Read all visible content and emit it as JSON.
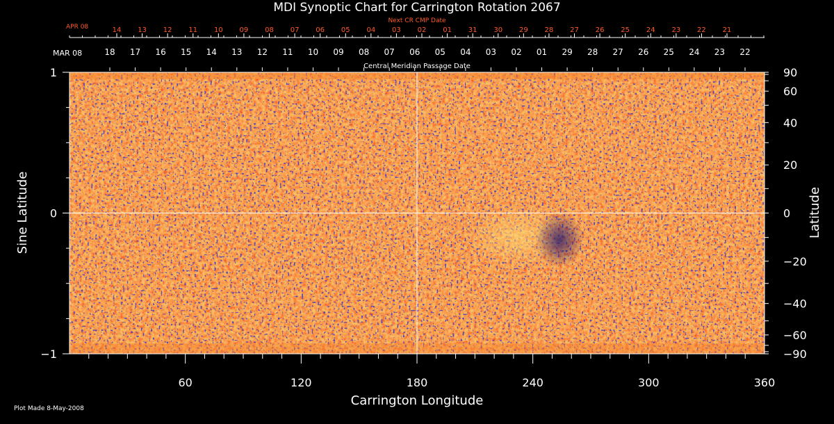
{
  "chart_data": {
    "type": "heatmap",
    "title": "MDI Synoptic Chart for Carrington Rotation 2067",
    "xlabel": "Carrington Longitude",
    "ylabel_left": "Sine Latitude",
    "ylabel_right": "Latitude",
    "xlim": [
      0,
      360
    ],
    "ylim": [
      -1,
      1
    ],
    "x_ticks": [
      60,
      120,
      180,
      240,
      300,
      360
    ],
    "y_ticks_left": [
      {
        "value": 1,
        "label": "1"
      },
      {
        "value": 0,
        "label": "0"
      },
      {
        "value": -1,
        "label": "−1"
      }
    ],
    "y_ticks_right": [
      90,
      60,
      40,
      20,
      0,
      -20,
      -40,
      -60,
      -90
    ],
    "y_ticks_right_labels": [
      "90",
      "60",
      "40",
      "20",
      "0",
      "−20",
      "−40",
      "−60",
      "−90"
    ],
    "guide_lines": {
      "longitude": 180,
      "sine_latitude": 0
    },
    "colors": {
      "background": "#000000",
      "text": "#ffffff",
      "next_axis": "#ff5a2a",
      "map_base": "#f25a12",
      "map_bright": "#ffd24a",
      "map_dark": "#1a1070"
    },
    "cmp_axis": {
      "label": "Central Meridian Passage Date",
      "month": "MAR 08",
      "days": [
        "18",
        "17",
        "16",
        "15",
        "14",
        "13",
        "12",
        "11",
        "10",
        "09",
        "08",
        "07",
        "06",
        "05",
        "04",
        "03",
        "02",
        "01",
        "29",
        "28",
        "27",
        "26",
        "25",
        "24",
        "23",
        "22"
      ]
    },
    "next_cmp_axis": {
      "label": "Next CR CMP Date",
      "month": "APR 08",
      "days": [
        "14",
        "13",
        "12",
        "11",
        "10",
        "09",
        "08",
        "07",
        "06",
        "05",
        "04",
        "03",
        "02",
        "01",
        "31",
        "30",
        "29",
        "28",
        "27",
        "26",
        "25",
        "24",
        "23",
        "22",
        "21"
      ]
    },
    "footer": "Plot Made  8-May-2008"
  }
}
